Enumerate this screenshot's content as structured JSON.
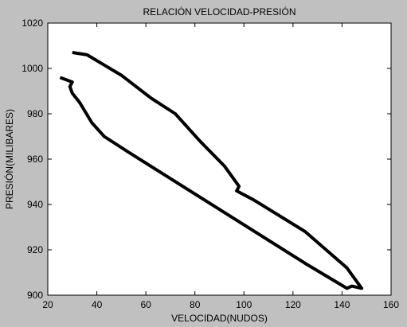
{
  "chart_data": {
    "type": "line",
    "title": "RELACIÓN VELOCIDAD-PRESIÓN",
    "xlabel": "VELOCIDAD(NUDOS)",
    "ylabel": "PRESIÓN(MILIBARES)",
    "xlim": [
      20,
      160
    ],
    "ylim": [
      900,
      1020
    ],
    "xticks": [
      20,
      40,
      60,
      80,
      100,
      120,
      140,
      160
    ],
    "yticks": [
      900,
      920,
      940,
      960,
      980,
      1000,
      1020
    ],
    "grid": false,
    "series": [
      {
        "color": "#000000",
        "x": [
          30,
          36,
          50,
          62,
          72,
          82,
          92,
          98,
          97,
          104,
          125,
          142,
          148,
          144,
          142,
          125,
          53,
          43,
          38,
          33,
          30,
          29,
          30,
          25
        ],
        "y": [
          1007,
          1006,
          997,
          987,
          980,
          968,
          957,
          948,
          946,
          942,
          928,
          912,
          903,
          904,
          903,
          914,
          963,
          970,
          976,
          985,
          989,
          992,
          994,
          996
        ]
      }
    ]
  }
}
